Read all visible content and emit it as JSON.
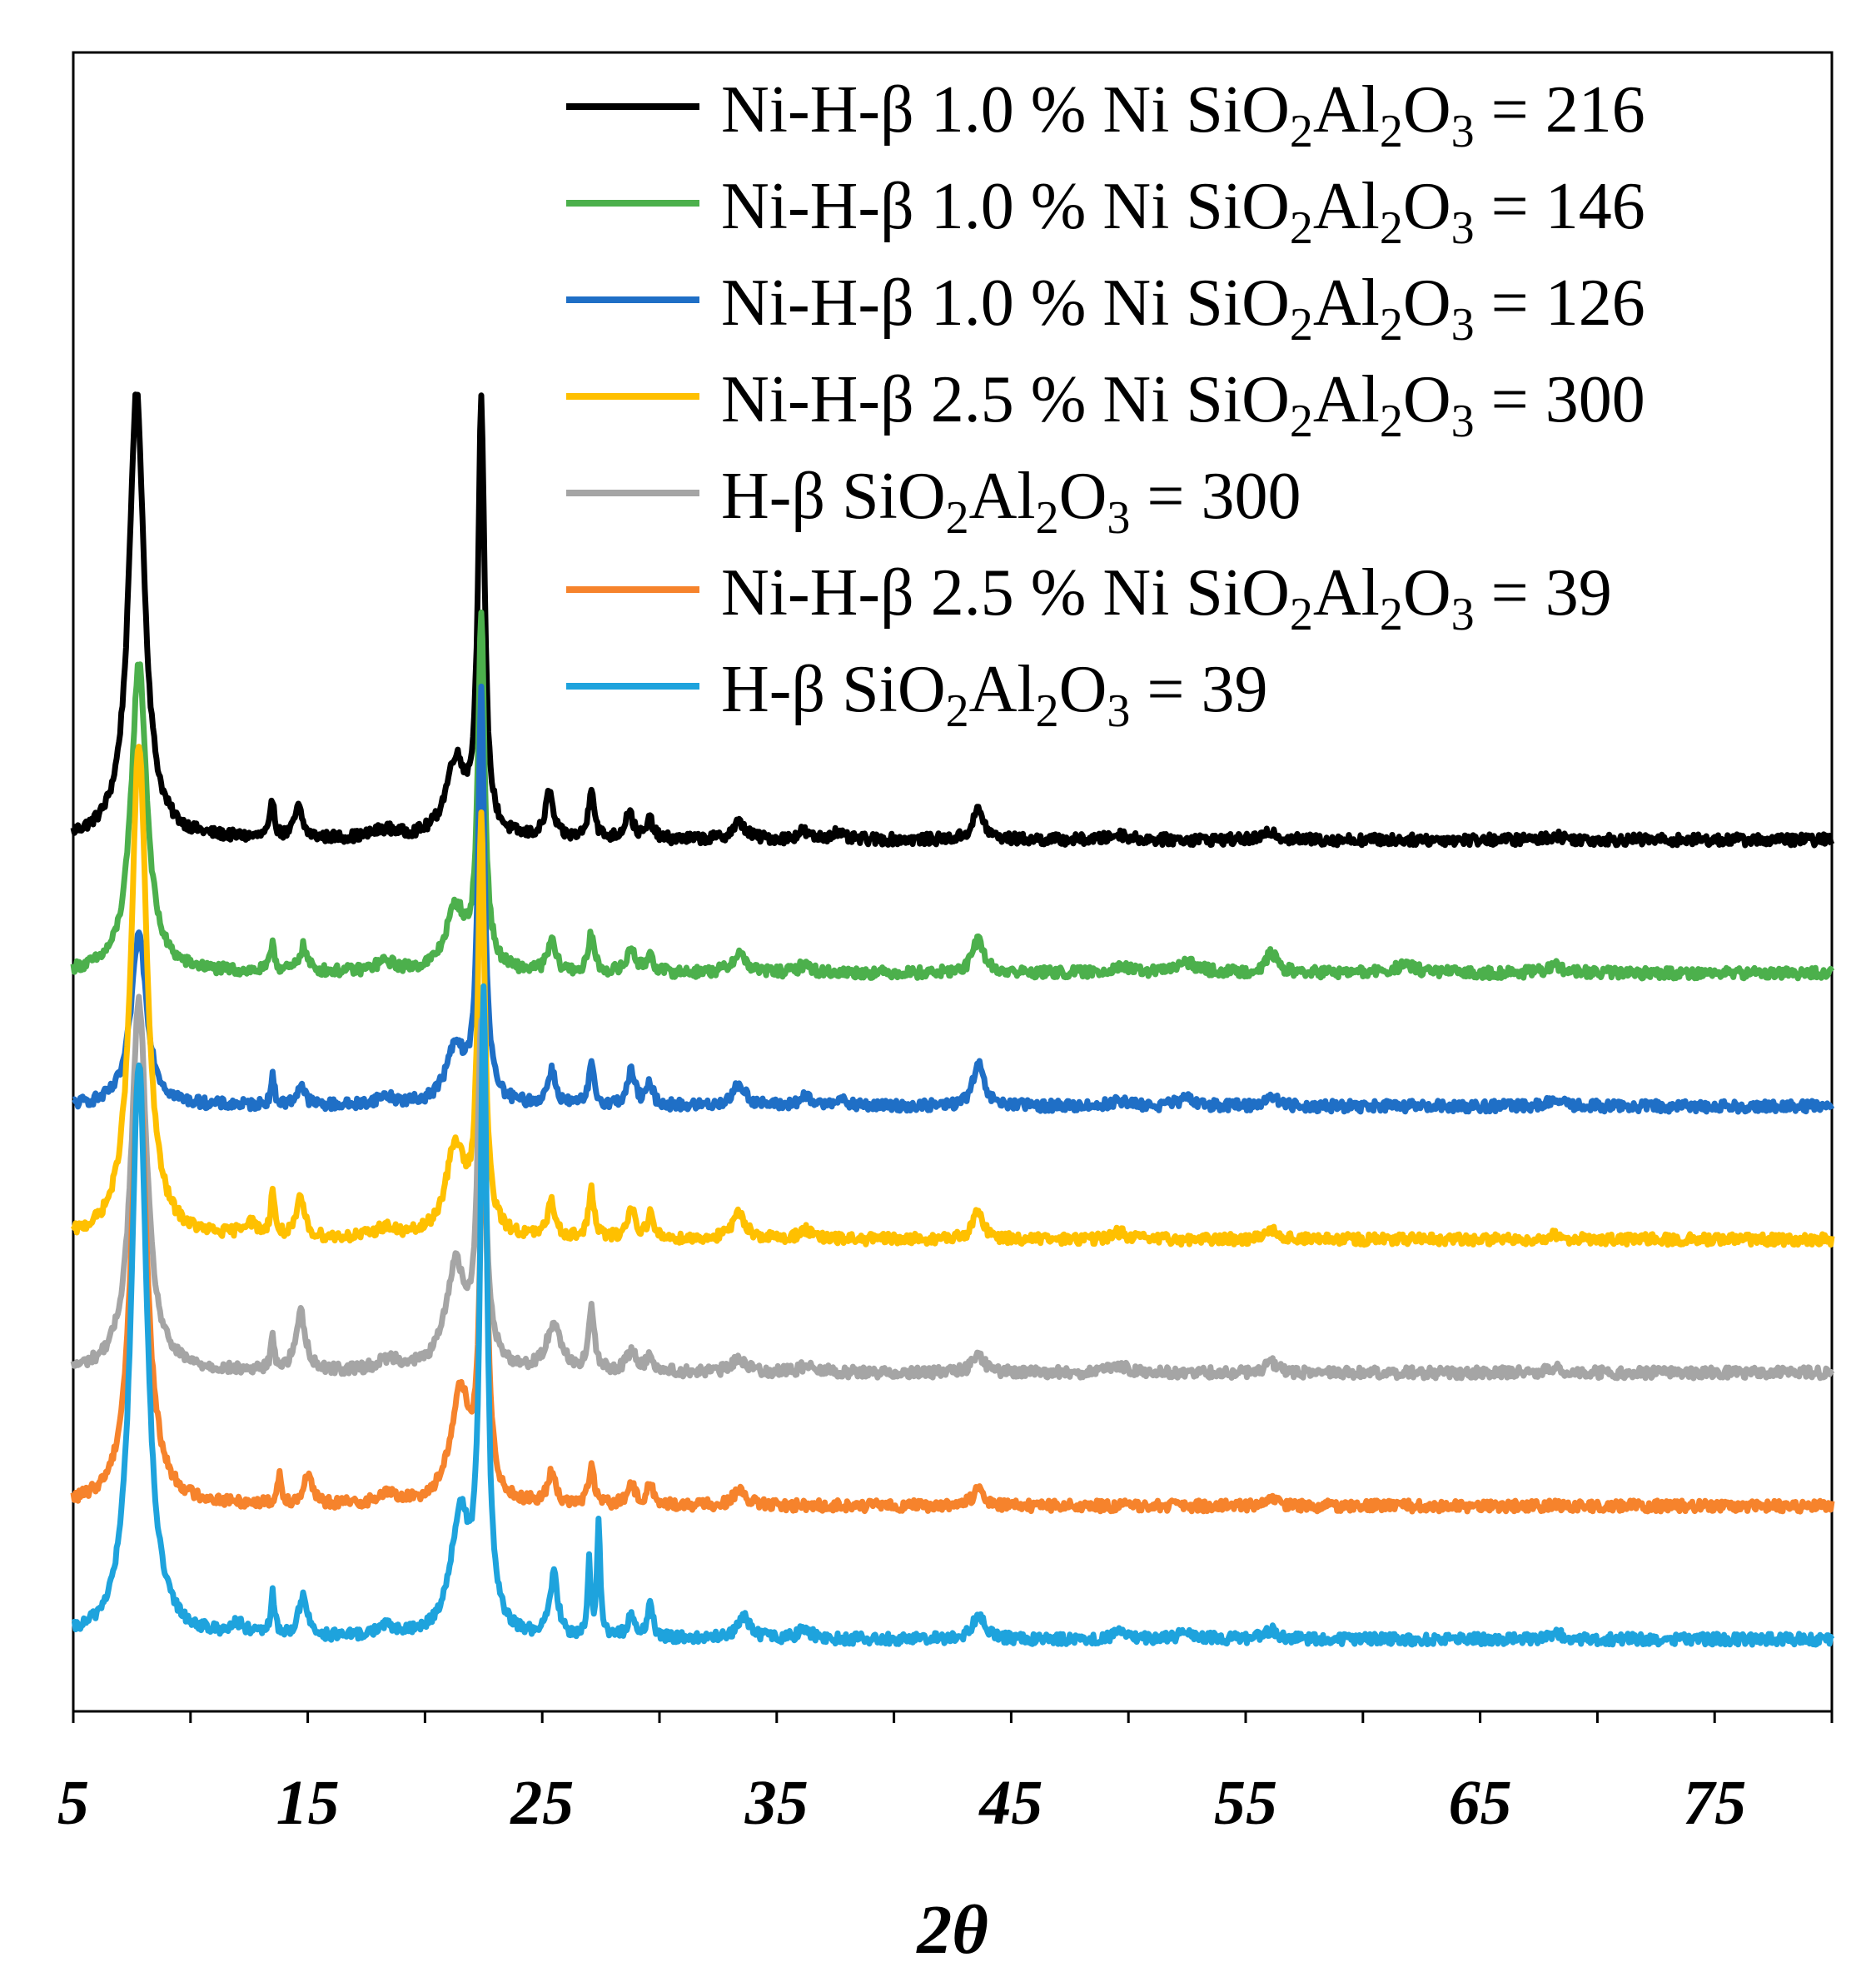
{
  "chart_data": {
    "type": "line",
    "title": "",
    "xlabel": "2θ",
    "ylabel": "",
    "xlim": [
      5,
      80
    ],
    "x_ticks": [
      "5",
      "15",
      "25",
      "35",
      "45",
      "55",
      "65",
      "75"
    ],
    "grid": false,
    "legend_position": "top-right",
    "series": [
      {
        "name": "Ni-H-β 1.0 % Ni SiO2Al2O3 = 216",
        "label_parts": {
          "prefix": "Ni-H-β 1.0 % Ni SiO",
          "a": "2",
          "b": "Al",
          "c": "2",
          "d": "O",
          "e": "3",
          "suffix": " = 216"
        },
        "color": "#000000",
        "offset": 6,
        "baseline": 0.1,
        "scale": 1.0,
        "peaks": [
          [
            7.7,
            3.25,
            0.4
          ],
          [
            13.5,
            0.28,
            0.1
          ],
          [
            14.6,
            0.22,
            0.2
          ],
          [
            18.3,
            0.06,
            0.6
          ],
          [
            21.3,
            0.55,
            0.5
          ],
          [
            22.4,
            3.1,
            0.17
          ],
          [
            25.3,
            0.32,
            0.2
          ],
          [
            27.1,
            0.38,
            0.14
          ],
          [
            28.7,
            0.2,
            0.2
          ],
          [
            29.6,
            0.14,
            0.15
          ],
          [
            33.4,
            0.12,
            0.35
          ],
          [
            36.1,
            0.06,
            0.25
          ],
          [
            37.5,
            0.05,
            0.3
          ],
          [
            43.6,
            0.22,
            0.28
          ],
          [
            49.6,
            0.04,
            0.4
          ],
          [
            56.1,
            0.06,
            0.3
          ],
          [
            68.2,
            0.03,
            0.4
          ]
        ]
      },
      {
        "name": "Ni-H-β 1.0 % Ni SiO2Al2O3 = 146",
        "label_parts": {
          "prefix": "Ni-H-β 1.0 % Ni SiO",
          "a": "2",
          "b": "Al",
          "c": "2",
          "d": "O",
          "e": "3",
          "suffix": " = 146"
        },
        "color": "#4cb04c",
        "offset": 5,
        "baseline": 0.1,
        "scale": 1.0,
        "peaks": [
          [
            7.8,
            2.25,
            0.4
          ],
          [
            13.5,
            0.22,
            0.1
          ],
          [
            14.8,
            0.18,
            0.2
          ],
          [
            18.3,
            0.07,
            0.5
          ],
          [
            21.3,
            0.45,
            0.5
          ],
          [
            22.4,
            2.55,
            0.17
          ],
          [
            25.4,
            0.22,
            0.2
          ],
          [
            27.1,
            0.28,
            0.14
          ],
          [
            28.8,
            0.18,
            0.2
          ],
          [
            29.6,
            0.14,
            0.15
          ],
          [
            33.4,
            0.14,
            0.35
          ],
          [
            36.2,
            0.06,
            0.3
          ],
          [
            43.6,
            0.25,
            0.28
          ],
          [
            49.6,
            0.05,
            0.4
          ],
          [
            52.5,
            0.07,
            0.6
          ],
          [
            56.1,
            0.14,
            0.3
          ],
          [
            61.8,
            0.05,
            0.6
          ],
          [
            68.2,
            0.05,
            0.4
          ]
        ]
      },
      {
        "name": "Ni-H-β 1.0 % Ni SiO2Al2O3 = 126",
        "label_parts": {
          "prefix": "Ni-H-β 1.0 % Ni SiO",
          "a": "2",
          "b": "Al",
          "c": "2",
          "d": "O",
          "e": "3",
          "suffix": " = 126"
        },
        "color": "#1f6fc6",
        "offset": 4,
        "baseline": 0.1,
        "scale": 1.0,
        "peaks": [
          [
            7.8,
            1.25,
            0.4
          ],
          [
            13.5,
            0.2,
            0.1
          ],
          [
            14.7,
            0.15,
            0.2
          ],
          [
            18.3,
            0.06,
            0.5
          ],
          [
            21.3,
            0.4,
            0.5
          ],
          [
            22.4,
            2.95,
            0.17
          ],
          [
            25.4,
            0.25,
            0.2
          ],
          [
            27.1,
            0.28,
            0.14
          ],
          [
            28.8,
            0.25,
            0.2
          ],
          [
            29.6,
            0.16,
            0.15
          ],
          [
            33.4,
            0.15,
            0.35
          ],
          [
            36.2,
            0.06,
            0.3
          ],
          [
            37.6,
            0.05,
            0.3
          ],
          [
            43.6,
            0.3,
            0.28
          ],
          [
            49.6,
            0.04,
            0.4
          ],
          [
            52.5,
            0.05,
            0.5
          ],
          [
            56.1,
            0.08,
            0.3
          ],
          [
            68.2,
            0.04,
            0.4
          ]
        ]
      },
      {
        "name": "Ni-H-β 2.5 % Ni SiO2Al2O3 = 300",
        "label_parts": {
          "prefix": "Ni-H-β 2.5 % Ni SiO",
          "a": "2",
          "b": "Al",
          "c": "2",
          "d": "O",
          "e": "3",
          "suffix": " = 300"
        },
        "color": "#ffc000",
        "offset": 3,
        "baseline": 0.1,
        "scale": 1.0,
        "peaks": [
          [
            7.8,
            3.6,
            0.4
          ],
          [
            12.5,
            0.1,
            0.4
          ],
          [
            13.5,
            0.33,
            0.1
          ],
          [
            14.7,
            0.28,
            0.2
          ],
          [
            18.3,
            0.07,
            0.5
          ],
          [
            21.3,
            0.65,
            0.5
          ],
          [
            22.4,
            3.0,
            0.17
          ],
          [
            25.4,
            0.25,
            0.2
          ],
          [
            27.1,
            0.35,
            0.14
          ],
          [
            28.8,
            0.22,
            0.2
          ],
          [
            29.6,
            0.17,
            0.15
          ],
          [
            33.4,
            0.18,
            0.35
          ],
          [
            36.2,
            0.07,
            0.3
          ],
          [
            43.6,
            0.2,
            0.28
          ],
          [
            49.6,
            0.05,
            0.4
          ],
          [
            56.1,
            0.08,
            0.3
          ],
          [
            68.2,
            0.03,
            0.4
          ]
        ]
      },
      {
        "name": "H-β SiO2Al2O3 = 300",
        "label_parts": {
          "prefix": "H-β SiO",
          "a": "2",
          "b": "Al",
          "c": "2",
          "d": "O",
          "e": "3",
          "suffix": " = 300"
        },
        "color": "#a5a5a5",
        "offset": 2,
        "baseline": 0.1,
        "scale": 1.0,
        "peaks": [
          [
            7.8,
            2.7,
            0.4
          ],
          [
            13.5,
            0.22,
            0.1
          ],
          [
            14.7,
            0.42,
            0.25
          ],
          [
            18.5,
            0.08,
            0.6
          ],
          [
            21.3,
            0.75,
            0.5
          ],
          [
            22.4,
            2.4,
            0.2
          ],
          [
            25.5,
            0.35,
            0.35
          ],
          [
            27.1,
            0.45,
            0.14
          ],
          [
            28.8,
            0.14,
            0.25
          ],
          [
            29.6,
            0.1,
            0.2
          ],
          [
            33.4,
            0.1,
            0.35
          ],
          [
            36.4,
            0.06,
            0.4
          ],
          [
            43.6,
            0.14,
            0.28
          ],
          [
            49.6,
            0.05,
            0.4
          ],
          [
            56.1,
            0.07,
            0.3
          ],
          [
            68.2,
            0.03,
            0.4
          ]
        ]
      },
      {
        "name": "Ni-H-β 2.5 % Ni SiO2Al2O3 = 39",
        "label_parts": {
          "prefix": "Ni-H-β 2.5 % Ni SiO",
          "a": "2",
          "b": "Al",
          "c": "2",
          "d": "O",
          "e": "3",
          "suffix": " = 39"
        },
        "color": "#f6832c",
        "offset": 1,
        "baseline": 0.1,
        "scale": 1.0,
        "peaks": [
          [
            7.8,
            3.2,
            0.4
          ],
          [
            13.8,
            0.22,
            0.1
          ],
          [
            15.0,
            0.22,
            0.2
          ],
          [
            18.4,
            0.07,
            0.5
          ],
          [
            21.5,
            0.8,
            0.5
          ],
          [
            22.5,
            2.9,
            0.17
          ],
          [
            25.4,
            0.22,
            0.2
          ],
          [
            27.1,
            0.28,
            0.14
          ],
          [
            28.8,
            0.14,
            0.2
          ],
          [
            29.6,
            0.16,
            0.15
          ],
          [
            33.4,
            0.1,
            0.35
          ],
          [
            43.6,
            0.12,
            0.28
          ],
          [
            56.1,
            0.04,
            0.3
          ]
        ]
      },
      {
        "name": "H-β SiO2Al2O3 = 39",
        "label_parts": {
          "prefix": "H-β SiO",
          "a": "2",
          "b": "Al",
          "c": "2",
          "d": "O",
          "e": "3",
          "suffix": " = 39"
        },
        "color": "#1ea3dd",
        "offset": 0,
        "baseline": 0.1,
        "scale": 1.0,
        "peaks": [
          [
            7.8,
            4.2,
            0.4
          ],
          [
            12.0,
            0.08,
            0.4
          ],
          [
            13.5,
            0.3,
            0.1
          ],
          [
            14.8,
            0.3,
            0.22
          ],
          [
            18.3,
            0.07,
            0.5
          ],
          [
            21.5,
            0.85,
            0.5
          ],
          [
            22.5,
            4.6,
            0.17
          ],
          [
            25.5,
            0.45,
            0.2
          ],
          [
            27.0,
            0.55,
            0.08
          ],
          [
            27.4,
            0.85,
            0.08
          ],
          [
            28.8,
            0.15,
            0.2
          ],
          [
            29.6,
            0.22,
            0.15
          ],
          [
            33.6,
            0.15,
            0.35
          ],
          [
            36.2,
            0.07,
            0.3
          ],
          [
            43.6,
            0.18,
            0.28
          ],
          [
            49.6,
            0.04,
            0.4
          ],
          [
            52.5,
            0.04,
            0.5
          ],
          [
            56.1,
            0.07,
            0.3
          ],
          [
            68.2,
            0.04,
            0.4
          ]
        ]
      }
    ]
  }
}
